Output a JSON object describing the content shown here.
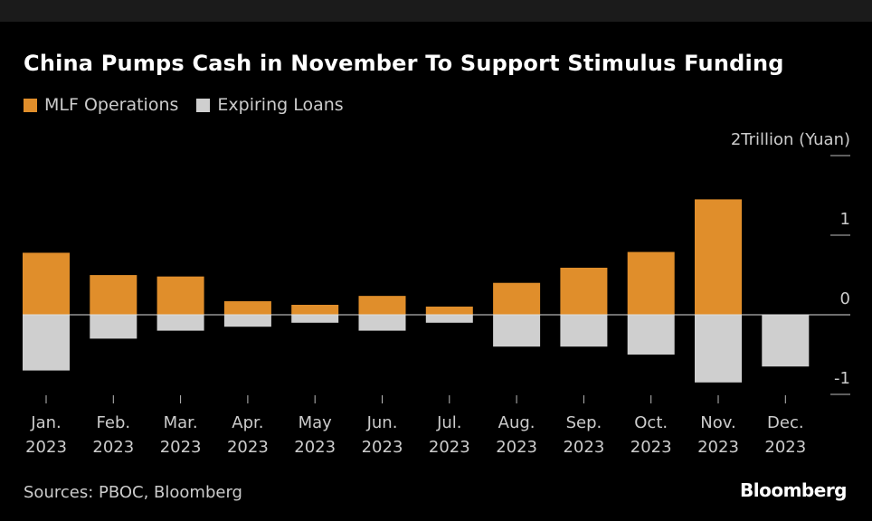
{
  "chart_data": {
    "type": "bar",
    "title": "China Pumps Cash in November To Support Stimulus Funding",
    "unit_label": "2Trillion (Yuan)",
    "ylim": [
      -1,
      2
    ],
    "yticks": [
      {
        "value": 2,
        "label": "2Trillion (Yuan)"
      },
      {
        "value": 1,
        "label": "1"
      },
      {
        "value": 0,
        "label": "0"
      },
      {
        "value": -1,
        "label": "-1"
      }
    ],
    "categories": [
      [
        "Jan.",
        "2023"
      ],
      [
        "Feb.",
        "2023"
      ],
      [
        "Mar.",
        "2023"
      ],
      [
        "Apr.",
        "2023"
      ],
      [
        "May",
        "2023"
      ],
      [
        "Jun.",
        "2023"
      ],
      [
        "Jul.",
        "2023"
      ],
      [
        "Aug.",
        "2023"
      ],
      [
        "Sep.",
        "2023"
      ],
      [
        "Oct.",
        "2023"
      ],
      [
        "Nov.",
        "2023"
      ],
      [
        "Dec.",
        "2023"
      ]
    ],
    "series": [
      {
        "name": "MLF Operations",
        "color": "#e08e2b",
        "values": [
          0.779,
          0.499,
          0.481,
          0.17,
          0.125,
          0.237,
          0.103,
          0.401,
          0.591,
          0.789,
          1.45,
          0
        ]
      },
      {
        "name": "Expiring Loans",
        "color": "#cfcfcf",
        "values": [
          -0.7,
          -0.3,
          -0.2,
          -0.15,
          -0.1,
          -0.2,
          -0.1,
          -0.4,
          -0.4,
          -0.5,
          -0.85,
          -0.65
        ]
      }
    ],
    "legend_position": "top-left",
    "source": "Sources: PBOC, Bloomberg",
    "brand": "Bloomberg"
  }
}
